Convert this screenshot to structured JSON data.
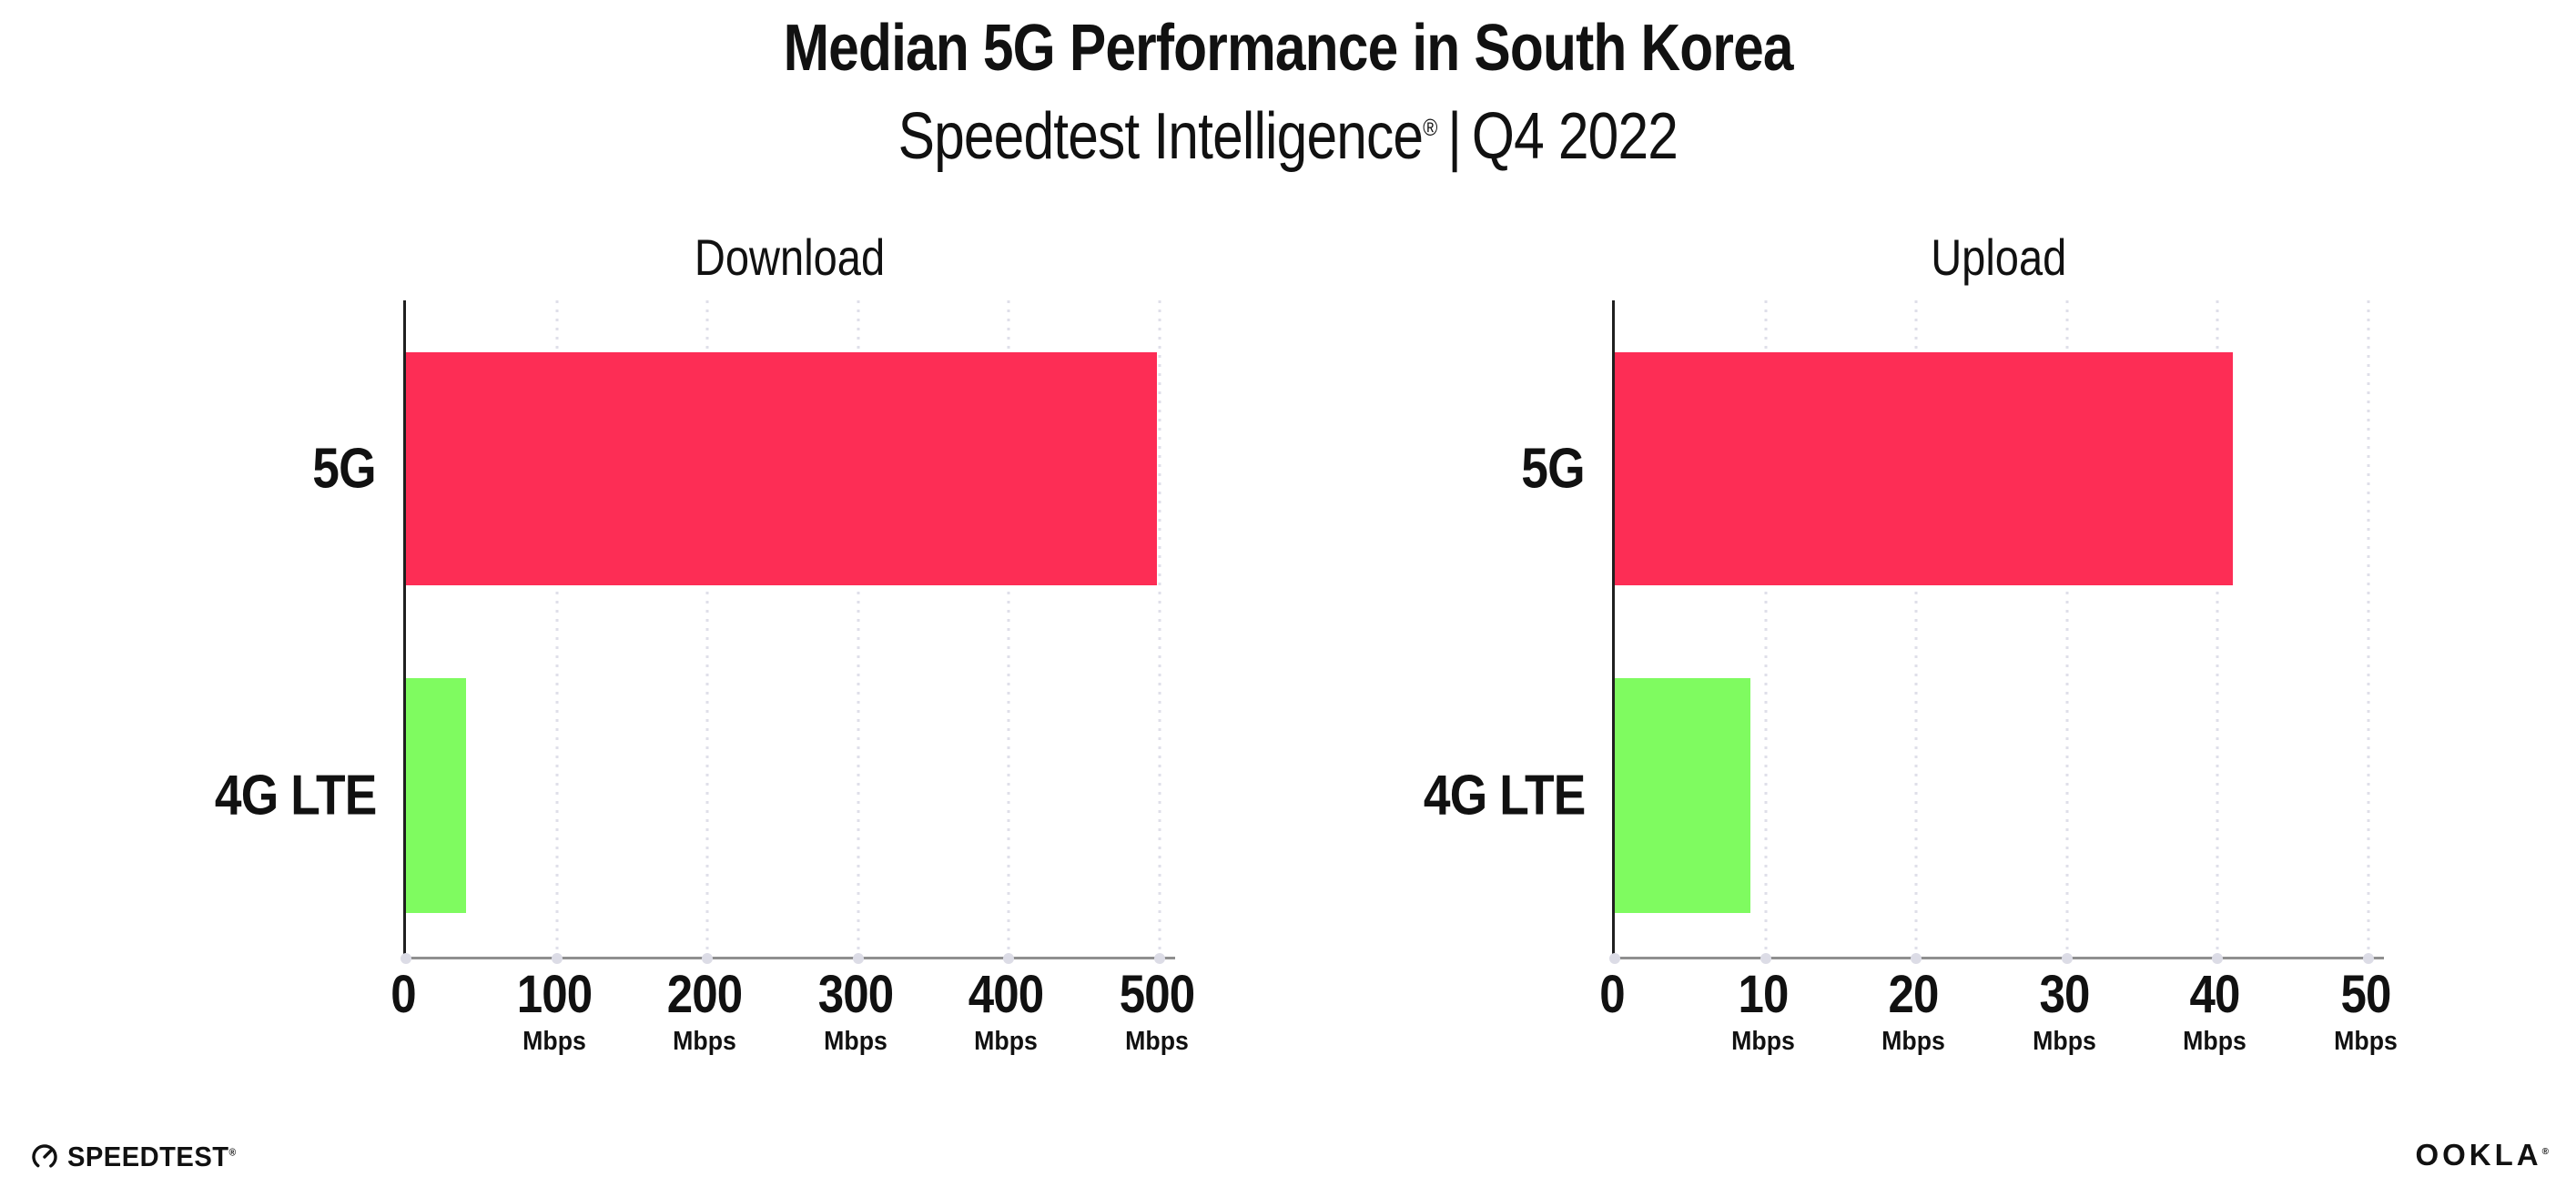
{
  "header": {
    "title": "Median 5G Performance in South Korea",
    "subtitle_product": "Speedtest Intelligence",
    "subtitle_reg": "®",
    "subtitle_separator": "|",
    "subtitle_period": "Q4 2022"
  },
  "chart_data": [
    {
      "type": "bar",
      "orientation": "horizontal",
      "title": "Download",
      "categories": [
        "5G",
        "4G LTE"
      ],
      "values": [
        498,
        40
      ],
      "unit": "Mbps",
      "xlim": [
        0,
        500
      ],
      "xticks": [
        0,
        100,
        200,
        300,
        400,
        500
      ],
      "bar_colors": [
        "#FD2D55",
        "#7FFB60"
      ],
      "grid": "dotted-vertical-gridlines",
      "legend": "none"
    },
    {
      "type": "bar",
      "orientation": "horizontal",
      "title": "Upload",
      "categories": [
        "5G",
        "4G LTE"
      ],
      "values": [
        41,
        9
      ],
      "unit": "Mbps",
      "xlim": [
        0,
        50
      ],
      "xticks": [
        0,
        10,
        20,
        30,
        40,
        50
      ],
      "bar_colors": [
        "#FD2D55",
        "#7FFB60"
      ],
      "grid": "dotted-vertical-gridlines",
      "legend": "none"
    }
  ],
  "footer": {
    "speedtest_logo_text": "SPEEDTEST",
    "speedtest_trademark": "®",
    "ookla_logo_text": "OOKLA",
    "ookla_trademark": "®"
  },
  "colors": {
    "bar_5g": "#FD2D55",
    "bar_4g_lte": "#7FFB60",
    "axis_y": "#1F1F1F",
    "axis_x": "#8F8F8F",
    "gridline": "#DFDFE9",
    "text": "#111111",
    "background": "#FFFFFF"
  }
}
